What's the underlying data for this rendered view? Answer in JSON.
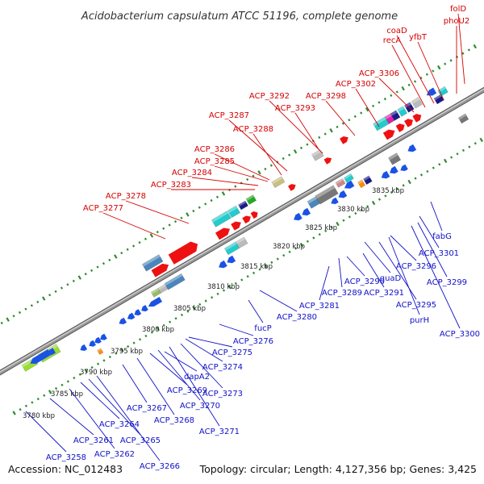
{
  "title": "Acidobacterium capsulatum ATCC 51196, complete genome",
  "footer": {
    "accession": "Accession: NC_012483",
    "summary": "Topology: circular; Length: 4,127,356 bp; Genes: 3,425"
  },
  "colors": {
    "forward_label": "#d40000",
    "reverse_label": "#1010c8",
    "backbone": "#999999",
    "tick": "#2e8b2e"
  },
  "kbp_labels": [
    "3780 kbp",
    "3785 kbp",
    "3790 kbp",
    "3795 kbp",
    "3800 kbp",
    "3805 kbp",
    "3810 kbp",
    "3815 kbp",
    "3820 kbp",
    "3825 kbp",
    "3830 kbp",
    "3835 kbp"
  ],
  "top_labels": [
    "folD",
    "phoU2",
    "coaD",
    "yfbT",
    "recA",
    "ACP_3306",
    "ACP_3302",
    "ACP_3298",
    "ACP_3292",
    "ACP_3293",
    "ACP_3287",
    "ACP_3288",
    "ACP_3286",
    "ACP_3285",
    "ACP_3284",
    "ACP_3283",
    "ACP_3278",
    "ACP_3277"
  ],
  "bottom_labels": [
    "ACP_3258",
    "ACP_3261",
    "ACP_3262",
    "ACP_3264",
    "ACP_3265",
    "ACP_3266",
    "ACP_3267",
    "ACP_3268",
    "ACP_3269",
    "ACP_3270",
    "ACP_3271",
    "dapA2",
    "ACP_3273",
    "ACP_3274",
    "ACP_3275",
    "ACP_3276",
    "fucP",
    "ACP_3280",
    "ACP_3281",
    "ACP_3289",
    "ACP_3290",
    "ACP_3291",
    "guaD",
    "ACP_3295",
    "purH",
    "ACP_3296",
    "ACP_3300",
    "ACP_3299",
    "ACP_3301",
    "fabG"
  ]
}
